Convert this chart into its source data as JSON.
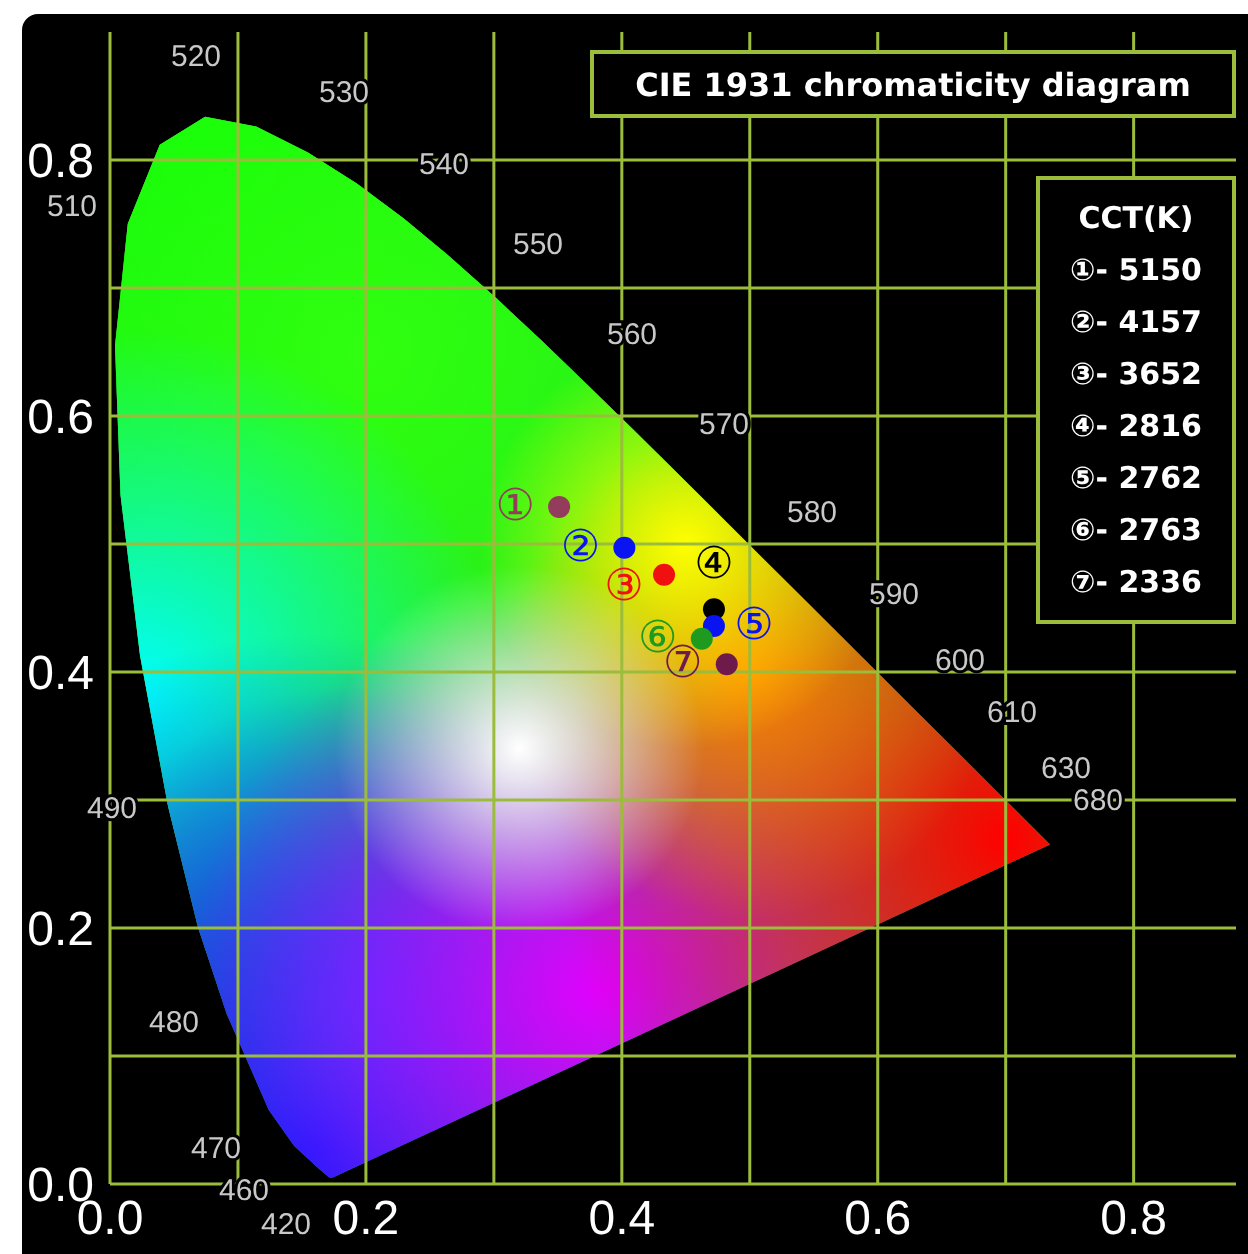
{
  "chart_data": {
    "type": "scatter",
    "title": "CIE 1931 chromaticity diagram",
    "xlim": [
      0,
      0.88
    ],
    "ylim": [
      0,
      0.9
    ],
    "xticks": [
      {
        "value": 0,
        "label": "0.0"
      },
      {
        "value": 0.1,
        "label": null
      },
      {
        "value": 0.2,
        "label": "0.2"
      },
      {
        "value": 0.3,
        "label": null
      },
      {
        "value": 0.4,
        "label": "0.4"
      },
      {
        "value": 0.5,
        "label": null
      },
      {
        "value": 0.6,
        "label": "0.6"
      },
      {
        "value": 0.7,
        "label": null
      },
      {
        "value": 0.8,
        "label": "0.8"
      }
    ],
    "yticks": [
      {
        "value": 0,
        "label": "0.0"
      },
      {
        "value": 0.1,
        "label": null
      },
      {
        "value": 0.2,
        "label": "0.2"
      },
      {
        "value": 0.3,
        "label": null
      },
      {
        "value": 0.4,
        "label": "0.4"
      },
      {
        "value": 0.5,
        "label": null
      },
      {
        "value": 0.6,
        "label": "0.6"
      },
      {
        "value": 0.7,
        "label": null
      },
      {
        "value": 0.8,
        "label": "0.8"
      }
    ],
    "grid": true,
    "legend": "top right",
    "legend_title": "CCT(K)",
    "marker": "circle",
    "annotations": [
      "520",
      "530",
      "540",
      "550",
      "560",
      "570",
      "580",
      "590",
      "600",
      "610",
      "630",
      "680",
      "510",
      "490",
      "480",
      "470",
      "460",
      "420"
    ],
    "series": [
      {
        "name": "①- 5150",
        "color": "#943c5c",
        "x": [
          0.351
        ],
        "values": [
          0.529
        ],
        "value_labels": [
          "①"
        ]
      },
      {
        "name": "②- 4157",
        "color": "#0a14f0",
        "x": [
          0.402
        ],
        "values": [
          0.497
        ],
        "value_labels": [
          "②"
        ]
      },
      {
        "name": "③- 3652",
        "color": "#f01010",
        "x": [
          0.433
        ],
        "values": [
          0.476
        ],
        "value_labels": [
          "③"
        ]
      },
      {
        "name": "④- 2816",
        "color": "#000000",
        "x": [
          0.472
        ],
        "values": [
          0.449
        ],
        "value_labels": [
          "④"
        ]
      },
      {
        "name": "⑤- 2762",
        "color": "#0a14f0",
        "x": [
          0.472
        ],
        "values": [
          0.436
        ],
        "value_labels": [
          "⑤"
        ]
      },
      {
        "name": "⑥- 2763",
        "color": "#1e9a1e",
        "x": [
          0.4625
        ],
        "values": [
          0.426
        ],
        "value_labels": [
          "⑥"
        ]
      },
      {
        "name": "⑦- 2336",
        "color": "#6e1a4a",
        "x": [
          0.482
        ],
        "values": [
          0.406
        ],
        "value_labels": [
          "⑦"
        ]
      }
    ]
  }
}
